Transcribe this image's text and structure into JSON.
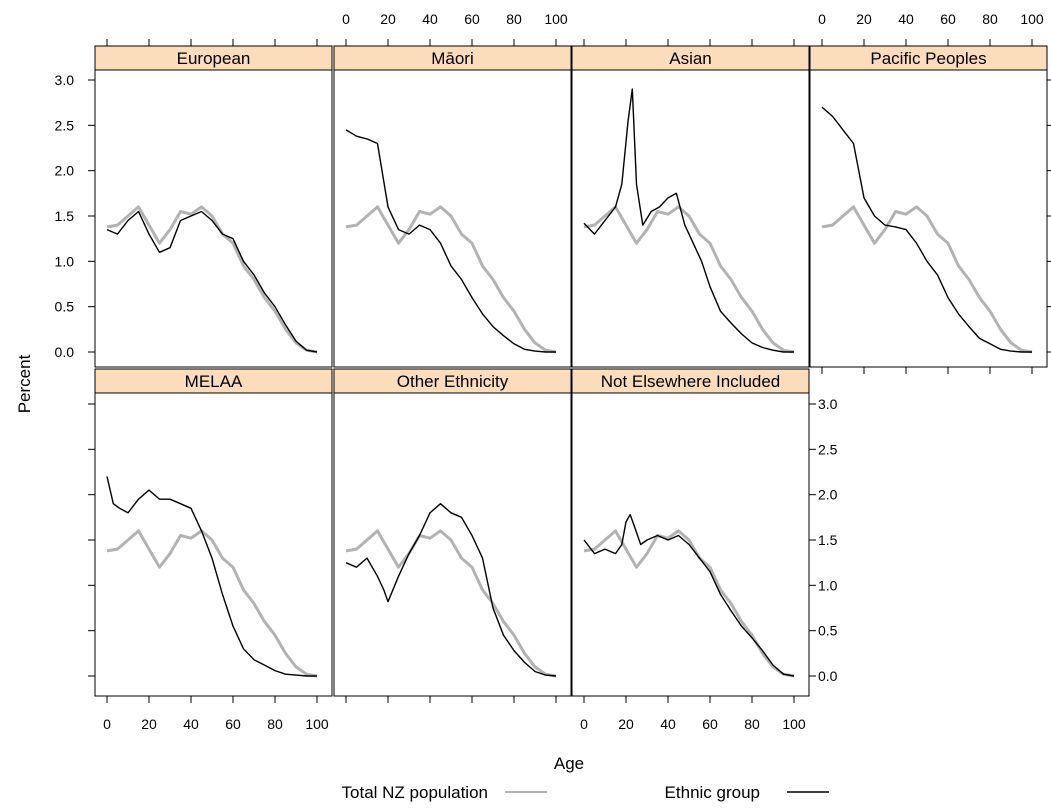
{
  "chart_data": {
    "type": "line",
    "xlabel": "Age",
    "ylabel": "Percent",
    "xlim": [
      0,
      100
    ],
    "ylim": [
      0,
      3
    ],
    "x_ticks": [
      0,
      20,
      40,
      60,
      80,
      100
    ],
    "x_tick_labels": [
      "0",
      "20",
      "40",
      "60",
      "80",
      "100"
    ],
    "y_ticks": [
      0,
      0.5,
      1,
      1.5,
      2,
      2.5,
      3
    ],
    "y_tick_labels": [
      "0.0",
      "0.5",
      "1.0",
      "1.5",
      "2.0",
      "2.5",
      "3.0"
    ],
    "legend": {
      "position": "bottom",
      "entries": [
        {
          "label": "Total NZ population",
          "color": "#b3b3b3"
        },
        {
          "label": "Ethnic group",
          "color": "#000000"
        }
      ]
    },
    "colors": {
      "strip": "#fbdcbb",
      "total": "#b3b3b3",
      "group": "#000000"
    },
    "total_nz": {
      "x": [
        0,
        5,
        10,
        15,
        20,
        25,
        30,
        35,
        40,
        45,
        50,
        55,
        60,
        65,
        70,
        75,
        80,
        85,
        90,
        95,
        100
      ],
      "y": [
        1.38,
        1.4,
        1.5,
        1.6,
        1.4,
        1.2,
        1.35,
        1.55,
        1.52,
        1.6,
        1.5,
        1.3,
        1.2,
        0.95,
        0.8,
        0.6,
        0.45,
        0.25,
        0.1,
        0.02,
        0.0
      ]
    },
    "panels": [
      {
        "title": "European",
        "x": [
          0,
          5,
          10,
          15,
          20,
          25,
          30,
          35,
          40,
          45,
          50,
          55,
          60,
          65,
          70,
          75,
          80,
          85,
          90,
          95,
          100
        ],
        "y": [
          1.35,
          1.3,
          1.45,
          1.55,
          1.3,
          1.1,
          1.15,
          1.45,
          1.5,
          1.55,
          1.45,
          1.3,
          1.25,
          1.0,
          0.85,
          0.65,
          0.5,
          0.3,
          0.12,
          0.02,
          0.0
        ]
      },
      {
        "title": "Māori",
        "x": [
          0,
          5,
          10,
          15,
          20,
          25,
          30,
          35,
          40,
          45,
          50,
          55,
          60,
          65,
          70,
          75,
          80,
          85,
          90,
          95,
          100
        ],
        "y": [
          2.45,
          2.38,
          2.35,
          2.3,
          1.6,
          1.35,
          1.3,
          1.4,
          1.35,
          1.2,
          0.95,
          0.8,
          0.6,
          0.42,
          0.28,
          0.18,
          0.09,
          0.03,
          0.01,
          0.0,
          0.0
        ]
      },
      {
        "title": "Asian",
        "x": [
          0,
          5,
          10,
          15,
          18,
          21,
          23,
          25,
          28,
          32,
          36,
          40,
          44,
          48,
          52,
          56,
          60,
          65,
          70,
          75,
          80,
          85,
          90,
          95,
          100
        ],
        "y": [
          1.42,
          1.3,
          1.45,
          1.6,
          1.85,
          2.55,
          2.9,
          1.85,
          1.4,
          1.55,
          1.6,
          1.7,
          1.75,
          1.4,
          1.2,
          1.0,
          0.72,
          0.45,
          0.32,
          0.2,
          0.1,
          0.05,
          0.02,
          0.0,
          0.0
        ]
      },
      {
        "title": "Pacific Peoples",
        "x": [
          0,
          5,
          10,
          15,
          20,
          25,
          30,
          35,
          40,
          45,
          50,
          55,
          60,
          65,
          70,
          75,
          80,
          85,
          90,
          95,
          100
        ],
        "y": [
          2.7,
          2.6,
          2.45,
          2.3,
          1.7,
          1.5,
          1.4,
          1.38,
          1.35,
          1.2,
          1.0,
          0.85,
          0.6,
          0.42,
          0.28,
          0.15,
          0.09,
          0.03,
          0.01,
          0.0,
          0.0
        ]
      },
      {
        "title": "MELAA",
        "x": [
          0,
          3,
          6,
          10,
          15,
          20,
          25,
          30,
          35,
          40,
          45,
          50,
          55,
          60,
          65,
          70,
          75,
          80,
          85,
          90,
          95,
          100
        ],
        "y": [
          2.2,
          1.9,
          1.85,
          1.8,
          1.95,
          2.05,
          1.95,
          1.95,
          1.9,
          1.85,
          1.6,
          1.3,
          0.9,
          0.55,
          0.3,
          0.18,
          0.12,
          0.06,
          0.02,
          0.01,
          0.0,
          0.0
        ]
      },
      {
        "title": "Other Ethnicity",
        "x": [
          0,
          5,
          10,
          15,
          18,
          20,
          25,
          30,
          35,
          40,
          45,
          50,
          55,
          60,
          65,
          70,
          75,
          80,
          85,
          90,
          95,
          100
        ],
        "y": [
          1.25,
          1.2,
          1.3,
          1.1,
          0.95,
          0.82,
          1.1,
          1.35,
          1.55,
          1.8,
          1.9,
          1.8,
          1.75,
          1.55,
          1.3,
          0.75,
          0.45,
          0.28,
          0.15,
          0.05,
          0.01,
          0.0
        ]
      },
      {
        "title": "Not Elsewhere Included",
        "x": [
          0,
          5,
          10,
          15,
          18,
          20,
          22,
          24,
          27,
          30,
          35,
          40,
          45,
          50,
          55,
          60,
          65,
          70,
          75,
          80,
          85,
          90,
          95,
          100
        ],
        "y": [
          1.5,
          1.35,
          1.4,
          1.35,
          1.45,
          1.7,
          1.78,
          1.65,
          1.45,
          1.5,
          1.55,
          1.5,
          1.55,
          1.45,
          1.3,
          1.15,
          0.9,
          0.72,
          0.55,
          0.42,
          0.28,
          0.12,
          0.02,
          0.0
        ]
      }
    ]
  }
}
